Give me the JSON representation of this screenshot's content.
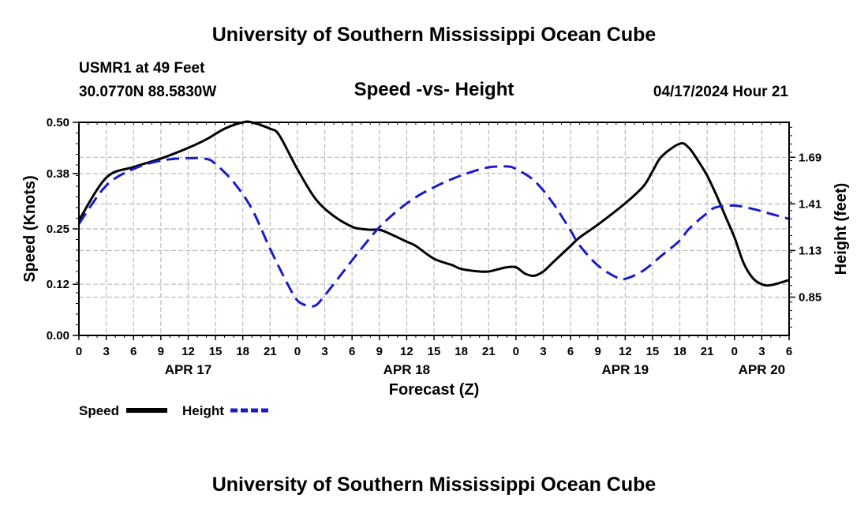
{
  "header": {
    "title": "University of Southern Mississippi Ocean Cube",
    "station": "USMR1 at 49 Feet",
    "coords": "30.0770N  88.5830W",
    "chart_title": "Speed -vs- Height",
    "timestamp": "04/17/2024 Hour 21",
    "footer_title": "University of Southern Mississippi Ocean Cube"
  },
  "legend": {
    "speed_label": "Speed",
    "height_label": "Height"
  },
  "colors": {
    "speed": "#000000",
    "height": "#1a1acc",
    "grid": "#bbbbbb"
  },
  "chart_data": {
    "type": "line",
    "title": "Speed -vs- Height",
    "xlabel": "Forecast (Z)",
    "ylabel": "Speed (Knots)",
    "y2label": "Height (feet)",
    "x_unit": "hours from APR 17 00Z",
    "xlim": [
      0,
      78
    ],
    "ylim": [
      0.0,
      0.5
    ],
    "y2lim": [
      0.62,
      1.9
    ],
    "x_ticks": [
      0,
      3,
      6,
      9,
      12,
      15,
      18,
      21,
      24,
      27,
      30,
      33,
      36,
      39,
      42,
      45,
      48,
      51,
      54,
      57,
      60,
      63,
      66,
      69,
      72,
      75,
      78
    ],
    "x_tick_labels": [
      "0",
      "3",
      "6",
      "9",
      "12",
      "15",
      "18",
      "21",
      "0",
      "3",
      "6",
      "9",
      "12",
      "15",
      "18",
      "21",
      "0",
      "3",
      "6",
      "9",
      "12",
      "15",
      "18",
      "21",
      "0",
      "3",
      "6"
    ],
    "date_labels": [
      {
        "hour": 12,
        "label": "APR 17"
      },
      {
        "hour": 36,
        "label": "APR 18"
      },
      {
        "hour": 60,
        "label": "APR 19"
      },
      {
        "hour": 75,
        "label": "APR 20"
      }
    ],
    "y_ticks": [
      0.0,
      0.12,
      0.25,
      0.38,
      0.5
    ],
    "y_tick_labels": [
      "0.00",
      "0.12",
      "0.25",
      "0.38",
      "0.50"
    ],
    "y2_ticks": [
      0.85,
      1.13,
      1.41,
      1.69
    ],
    "y2_tick_labels": [
      "0.85",
      "1.13",
      "1.41",
      "1.69"
    ],
    "grid": true,
    "series": [
      {
        "name": "Speed",
        "axis": "left",
        "style": "solid",
        "x": [
          0,
          3,
          6,
          9,
          12,
          14,
          16,
          18,
          19,
          21,
          22,
          24,
          26,
          28,
          30,
          31,
          32,
          33,
          34,
          36,
          37,
          39,
          41,
          42,
          44,
          45,
          46,
          47,
          48,
          49,
          50,
          51,
          52,
          53,
          54,
          55,
          57,
          60,
          62,
          63,
          64,
          66,
          67,
          68,
          69,
          70,
          71,
          72,
          73,
          74,
          75,
          76,
          78
        ],
        "y": [
          0.27,
          0.37,
          0.395,
          0.415,
          0.44,
          0.46,
          0.485,
          0.5,
          0.5,
          0.485,
          0.47,
          0.39,
          0.32,
          0.28,
          0.255,
          0.25,
          0.248,
          0.248,
          0.24,
          0.22,
          0.21,
          0.18,
          0.165,
          0.156,
          0.15,
          0.15,
          0.155,
          0.16,
          0.16,
          0.145,
          0.14,
          0.15,
          0.17,
          0.19,
          0.21,
          0.23,
          0.26,
          0.31,
          0.35,
          0.385,
          0.42,
          0.45,
          0.44,
          0.41,
          0.375,
          0.33,
          0.28,
          0.23,
          0.17,
          0.135,
          0.12,
          0.118,
          0.13
        ]
      },
      {
        "name": "Height",
        "axis": "right",
        "style": "dashed",
        "x": [
          0,
          3,
          6,
          9,
          12,
          14,
          15,
          17,
          19,
          21,
          23,
          24,
          25,
          26,
          27,
          29,
          31,
          33,
          35,
          37,
          39,
          41,
          43,
          45,
          47,
          48,
          50,
          52,
          54,
          55,
          57,
          59,
          60,
          62,
          64,
          66,
          67,
          69,
          70,
          72,
          74,
          76,
          78
        ],
        "y": [
          1.29,
          1.52,
          1.62,
          1.67,
          1.685,
          1.68,
          1.65,
          1.54,
          1.38,
          1.14,
          0.92,
          0.83,
          0.8,
          0.8,
          0.86,
          1.0,
          1.14,
          1.27,
          1.37,
          1.45,
          1.51,
          1.56,
          1.6,
          1.63,
          1.635,
          1.62,
          1.55,
          1.42,
          1.25,
          1.16,
          1.04,
          0.97,
          0.96,
          1.01,
          1.1,
          1.19,
          1.26,
          1.355,
          1.39,
          1.4,
          1.38,
          1.35,
          1.32
        ]
      }
    ]
  }
}
